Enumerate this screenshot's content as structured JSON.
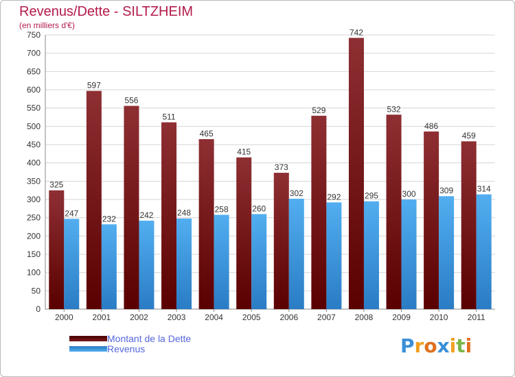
{
  "chart_data": {
    "type": "bar",
    "title": "Revenus/Dette - SILTZHEIM",
    "subtitle": "(en milliers d'€)",
    "categories": [
      "2000",
      "2001",
      "2002",
      "2003",
      "2004",
      "2005",
      "2006",
      "2007",
      "2008",
      "2009",
      "2010",
      "2011"
    ],
    "series": [
      {
        "name": "Montant de la Dette",
        "color": "#7a1a1e",
        "values": [
          325,
          597,
          556,
          511,
          465,
          415,
          373,
          529,
          742,
          532,
          486,
          459
        ]
      },
      {
        "name": "Revenus",
        "color": "#4aa3e8",
        "values": [
          247,
          232,
          242,
          248,
          258,
          260,
          302,
          292,
          295,
          300,
          309,
          314
        ]
      }
    ],
    "ylim": [
      0,
      750
    ],
    "yticks": [
      0,
      50,
      100,
      150,
      200,
      250,
      300,
      350,
      400,
      450,
      500,
      550,
      600,
      650,
      700,
      750
    ],
    "grid": true,
    "legend_position": "bottom-left"
  },
  "logo": {
    "letters": [
      {
        "ch": "P",
        "color": "#3a8fd8"
      },
      {
        "ch": "r",
        "color": "#f0a020"
      },
      {
        "ch": "o",
        "color": "#e07020"
      },
      {
        "ch": "x",
        "color": "#3a8fd8"
      },
      {
        "ch": "i",
        "color": "#f0a020"
      },
      {
        "ch": "t",
        "color": "#7ab648"
      },
      {
        "ch": "i",
        "color": "#e07020"
      }
    ]
  }
}
